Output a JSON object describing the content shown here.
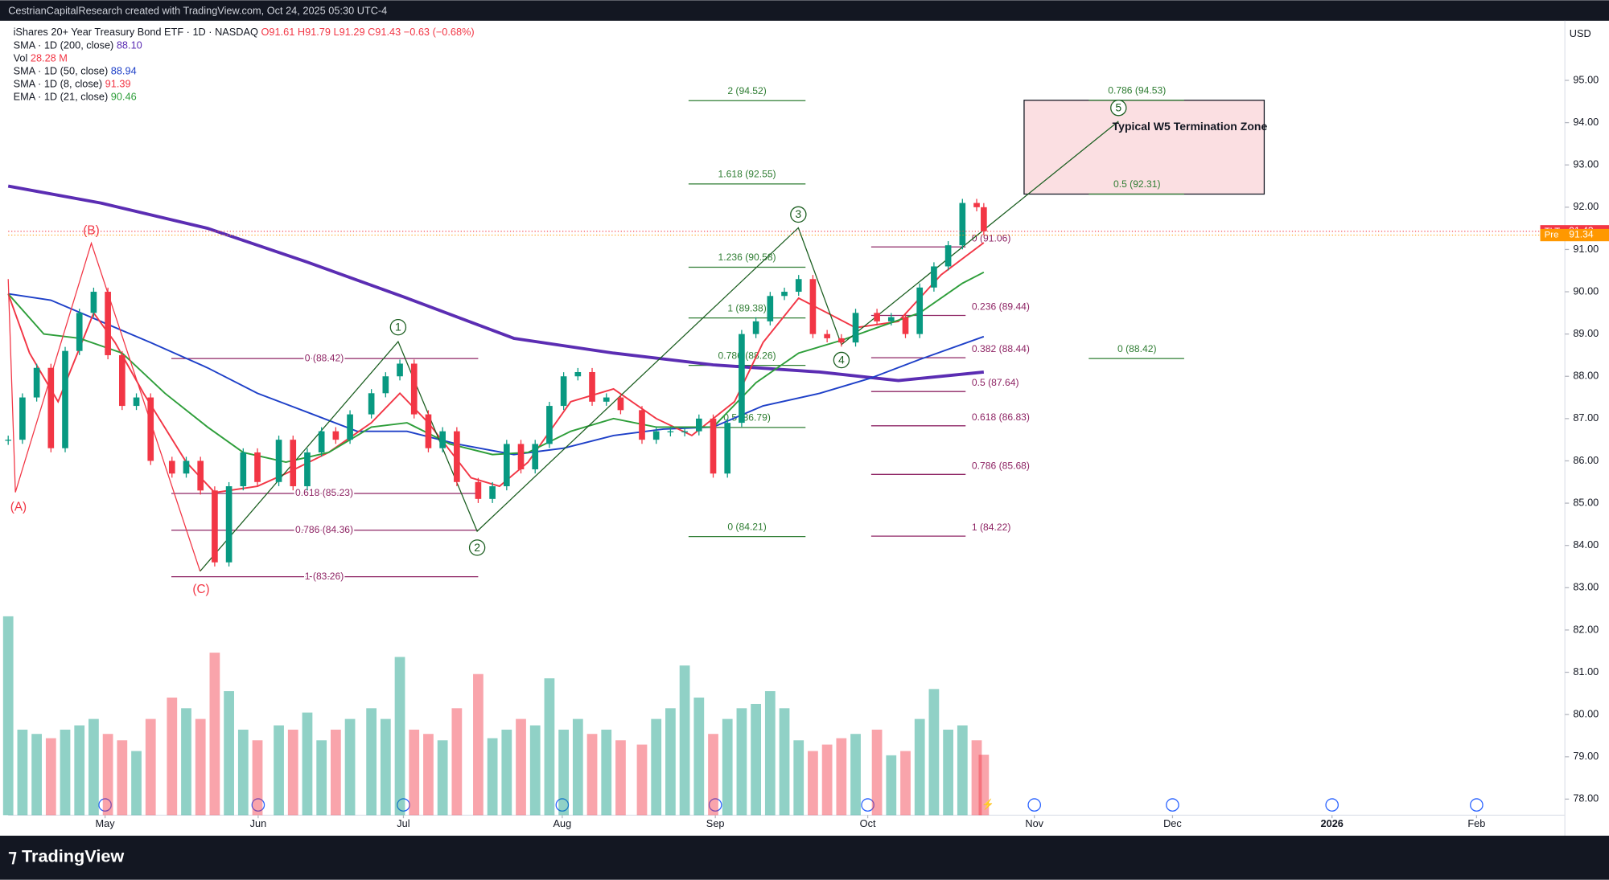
{
  "header": {
    "attribution": "CestrianCapitalResearch created with TradingView.com, Oct 24, 2025 05:30 UTC-4",
    "brand": "TradingView"
  },
  "chart_data": {
    "type": "candlestick",
    "title": "iShares 20+ Year Treasury Bond ETF · 1D · NASDAQ",
    "quote": [
      "O91.61",
      "H91.79",
      "L91.29",
      "C91.43",
      "−0.63 (−0.68%)"
    ],
    "currency": "USD",
    "x": [
      0,
      2,
      4,
      6,
      8,
      10,
      12,
      14,
      16,
      18,
      20,
      23,
      25,
      27,
      29,
      31,
      33,
      35,
      38,
      40,
      42,
      44,
      46,
      48,
      51,
      53,
      55,
      57,
      59,
      61,
      63,
      66,
      68,
      70,
      72,
      74,
      76,
      78,
      80,
      82,
      84,
      86,
      89,
      91,
      93,
      95,
      97,
      99,
      101,
      103,
      105,
      107,
      109,
      111,
      113,
      115,
      117,
      119,
      122,
      124,
      126,
      128,
      130,
      132,
      134,
      136,
      137
    ],
    "series": [
      {
        "name": "TLT",
        "up_color": "#089981",
        "down_color": "#f23645",
        "values": [
          86.5,
          87.5,
          88.2,
          86.3,
          88.6,
          89.5,
          90.0,
          88.5,
          87.3,
          87.5,
          86.0,
          85.7,
          86.0,
          85.3,
          83.6,
          85.4,
          86.2,
          85.5,
          86.5,
          85.4,
          86.2,
          86.7,
          86.5,
          87.1,
          87.6,
          88.0,
          88.3,
          87.1,
          86.3,
          86.7,
          85.5,
          85.1,
          85.4,
          86.4,
          85.8,
          86.4,
          87.3,
          88.0,
          88.1,
          87.4,
          87.5,
          87.2,
          86.5,
          86.7,
          86.7,
          86.7,
          87.0,
          85.7,
          86.9,
          89.0,
          89.3,
          89.9,
          90.0,
          90.3,
          89.0,
          88.9,
          88.8,
          89.5,
          89.3,
          89.4,
          89.0,
          90.1,
          90.6,
          91.1,
          92.1,
          92.0,
          91.43
        ]
      }
    ],
    "volume": {
      "name": "Vol",
      "last": "28.28 M",
      "color": "#f23645",
      "ylim": [
        0,
        100
      ],
      "values": [
        93,
        40,
        38,
        36,
        40,
        42,
        45,
        38,
        35,
        30,
        45,
        55,
        50,
        45,
        76,
        58,
        40,
        35,
        42,
        40,
        48,
        35,
        40,
        45,
        50,
        45,
        74,
        40,
        38,
        35,
        50,
        66,
        36,
        40,
        45,
        42,
        64,
        40,
        45,
        38,
        40,
        35,
        33,
        45,
        50,
        70,
        55,
        38,
        45,
        50,
        52,
        58,
        50,
        35,
        30,
        33,
        36,
        38,
        40,
        28,
        30,
        45,
        59,
        40,
        42,
        35,
        28.28
      ]
    },
    "indicators": [
      {
        "name": "SMA · 1D (200, close)",
        "last": "88.10",
        "color": "#5b2db3",
        "width": 3,
        "x": [
          0,
          13,
          28,
          42,
          56,
          71,
          85,
          99,
          114,
          125,
          137
        ],
        "values": [
          92.5,
          92.1,
          91.5,
          90.7,
          89.85,
          88.9,
          88.55,
          88.27,
          88.1,
          87.9,
          88.1
        ]
      },
      {
        "name": "SMA · 1D (50, close)",
        "last": "88.94",
        "color": "#1e40c8",
        "width": 1.5,
        "x": [
          0,
          6,
          13,
          20,
          28,
          35,
          42,
          49,
          56,
          63,
          71,
          78,
          85,
          92,
          99,
          106,
          114,
          121,
          128,
          137
        ],
        "values": [
          89.95,
          89.8,
          89.3,
          88.8,
          88.2,
          87.6,
          87.15,
          86.7,
          86.7,
          86.4,
          86.15,
          86.3,
          86.6,
          86.75,
          86.8,
          87.3,
          87.6,
          87.95,
          88.4,
          88.94
        ]
      },
      {
        "name": "SMA · 1D (8, close)",
        "last": "91.39",
        "color": "#f23645",
        "width": 1.5,
        "x": [
          0,
          3,
          7,
          12,
          15,
          19,
          25,
          29,
          35,
          39,
          45,
          51,
          55,
          59,
          65,
          69,
          73,
          79,
          85,
          91,
          96,
          102,
          106,
          111,
          115,
          119,
          125,
          131,
          137
        ],
        "values": [
          89.95,
          88.55,
          87.4,
          89.5,
          88.8,
          87.6,
          85.97,
          85.25,
          85.4,
          85.7,
          86.2,
          86.9,
          87.6,
          86.9,
          85.6,
          85.4,
          85.97,
          87.4,
          87.7,
          87.0,
          86.6,
          87.4,
          88.8,
          89.85,
          89.5,
          89.15,
          89.3,
          90.4,
          91.16
        ]
      },
      {
        "name": "EMA · 1D (21, close)",
        "last": "90.46",
        "color": "#2e9e3a",
        "width": 1.5,
        "x": [
          0,
          5,
          10,
          16,
          22,
          28,
          33,
          39,
          45,
          51,
          56,
          62,
          68,
          73,
          79,
          85,
          91,
          99,
          105,
          111,
          117,
          122,
          128,
          134,
          137
        ],
        "values": [
          89.95,
          89.0,
          88.9,
          88.55,
          87.6,
          86.8,
          86.2,
          85.97,
          86.2,
          86.8,
          86.9,
          86.4,
          86.15,
          86.2,
          86.7,
          87.0,
          86.8,
          86.8,
          87.85,
          88.55,
          88.85,
          89.15,
          89.5,
          90.2,
          90.46
        ]
      }
    ],
    "price_tags": [
      {
        "name": "TLT",
        "value": 91.43,
        "color": "#f23645"
      },
      {
        "name": "Pre",
        "value": 91.34,
        "color": "#ff9800"
      }
    ],
    "ylim": [
      77.62,
      96.41
    ],
    "yticks": [
      {
        "value": 95,
        "label": "95.00"
      },
      {
        "value": 94,
        "label": "94.00"
      },
      {
        "value": 93,
        "label": "93.00"
      },
      {
        "value": 92,
        "label": "92.00"
      },
      {
        "value": 91,
        "label": "91.00"
      },
      {
        "value": 90,
        "label": "90.00"
      },
      {
        "value": 89,
        "label": "89.00"
      },
      {
        "value": 88,
        "label": "88.00"
      },
      {
        "value": 87,
        "label": "87.00"
      },
      {
        "value": 86,
        "label": "86.00"
      },
      {
        "value": 85,
        "label": "85.00"
      },
      {
        "value": 84,
        "label": "84.00"
      },
      {
        "value": 83,
        "label": "83.00"
      },
      {
        "value": 82,
        "label": "82.00"
      },
      {
        "value": 81,
        "label": "81.00"
      },
      {
        "value": 80,
        "label": "80.00"
      },
      {
        "value": 79,
        "label": "79.00"
      },
      {
        "value": 78,
        "label": "78.00"
      }
    ],
    "xlim": [
      0,
      218.6
    ],
    "xticks": [
      {
        "value": 13.6,
        "label": "May"
      },
      {
        "value": 35.1,
        "label": "Jun"
      },
      {
        "value": 55.5,
        "label": "Jul"
      },
      {
        "value": 77.8,
        "label": "Aug"
      },
      {
        "value": 99.3,
        "label": "Sep"
      },
      {
        "value": 120.7,
        "label": "Oct"
      },
      {
        "value": 144.1,
        "label": "Nov"
      },
      {
        "value": 163.5,
        "label": "Dec"
      },
      {
        "value": 185.9,
        "label": "2026"
      },
      {
        "value": 206.2,
        "label": "Feb"
      }
    ],
    "fib_groups": [
      {
        "color": "#8e2464",
        "levels": [
          {
            "label": "0 (88.42)",
            "value": 88.42
          },
          {
            "label": "0.618 (85.23)",
            "value": 85.23
          },
          {
            "label": "0.786 (84.36)",
            "value": 84.36
          },
          {
            "label": "1 (83.26)",
            "value": 83.26
          }
        ]
      },
      {
        "color": "#2e7d32",
        "levels": [
          {
            "label": "2 (94.52)",
            "value": 94.52
          },
          {
            "label": "1.618 (92.55)",
            "value": 92.55
          },
          {
            "label": "1.236 (90.58)",
            "value": 90.58
          },
          {
            "label": "1 (89.38)",
            "value": 89.38
          },
          {
            "label": "0.786 (88.26)",
            "value": 88.26
          },
          {
            "label": "0.5 (86.79)",
            "value": 86.79
          },
          {
            "label": "0 (84.21)",
            "value": 84.21
          }
        ]
      },
      {
        "color": "#8e2464",
        "levels": [
          {
            "label": "0 (91.06)",
            "value": 91.06
          },
          {
            "label": "0.236 (89.44)",
            "value": 89.44
          },
          {
            "label": "0.382 (88.44)",
            "value": 88.44
          },
          {
            "label": "0.5 (87.64)",
            "value": 87.64
          },
          {
            "label": "0.618 (86.83)",
            "value": 86.83
          },
          {
            "label": "0.786 (85.68)",
            "value": 85.68
          },
          {
            "label": "1 (84.22)",
            "value": 84.22
          }
        ]
      },
      {
        "color": "#2e7d32",
        "levels": [
          {
            "label": "0.786 (94.53)",
            "value": 94.53
          },
          {
            "label": "0.5 (92.31)",
            "value": 92.31
          },
          {
            "label": "0 (88.42)",
            "value": 88.42
          }
        ]
      }
    ],
    "corrective_labels": [
      "(A)",
      "(B)",
      "(C)"
    ],
    "impulse_labels": [
      "1",
      "2",
      "3",
      "4",
      "5"
    ],
    "zone_label": "Typical W5 Termination Zone"
  }
}
